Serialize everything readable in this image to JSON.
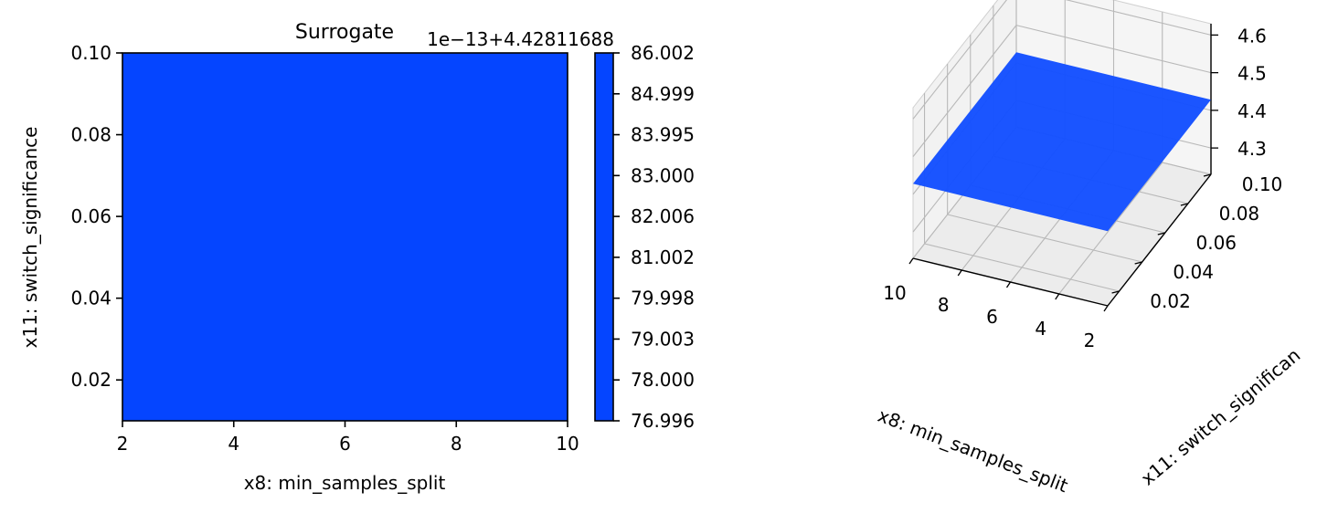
{
  "chart_data": [
    {
      "type": "heatmap",
      "title": "Surrogate",
      "xlabel": "x8: min_samples_split",
      "ylabel": "x11: switch_significance",
      "xlim": [
        2,
        10
      ],
      "ylim": [
        0.01,
        0.1
      ],
      "xticks": [
        "2",
        "4",
        "6",
        "8",
        "10"
      ],
      "yticks": [
        "0.02",
        "0.04",
        "0.06",
        "0.08",
        "0.10"
      ],
      "fill_color": "#0545ff",
      "colorbar": {
        "offset_label": "1e−13+4.42811688",
        "ticks": [
          "86.002",
          "84.999",
          "83.995",
          "83.000",
          "82.006",
          "81.002",
          "79.998",
          "79.003",
          "78.000",
          "76.996"
        ]
      }
    },
    {
      "type": "surface",
      "xlabel": "x8: min_samples_split",
      "ylabel": "x11: switch_significan",
      "xticks": [
        "2",
        "4",
        "6",
        "8",
        "10"
      ],
      "yticks": [
        "0.02",
        "0.04",
        "0.06",
        "0.08",
        "0.10"
      ],
      "zticks": [
        "4.3",
        "4.4",
        "4.5",
        "4.6"
      ],
      "zlim": [
        4.23,
        4.63
      ],
      "surface_value": 4.42811688,
      "surface_color": "#1450ff"
    }
  ]
}
